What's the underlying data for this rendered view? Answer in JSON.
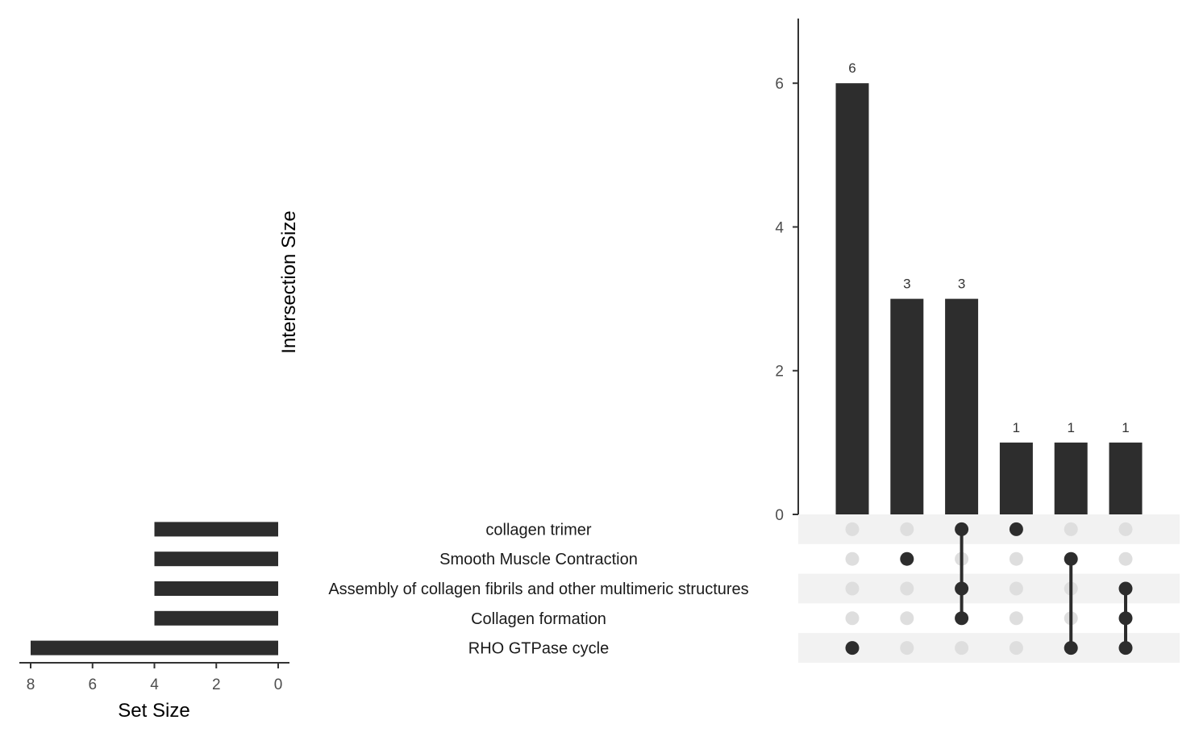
{
  "chart_data": {
    "type": "upset",
    "colors": {
      "bar": "#2d2d2d",
      "dot_active": "#2d2d2d",
      "dot_inactive": "#dedede",
      "stripe": "#f2f2f2",
      "axis": "#333333"
    },
    "sets": [
      "collagen trimer",
      "Smooth Muscle Contraction",
      "Assembly of collagen fibrils and other multimeric structures",
      "Collagen formation",
      "RHO GTPase cycle"
    ],
    "set_sizes": [
      4,
      4,
      4,
      4,
      8
    ],
    "set_size_axis": {
      "title": "Set Size",
      "ticks": [
        "8",
        "6",
        "4",
        "2",
        "0"
      ],
      "range": [
        0,
        8.4
      ],
      "reversed": true
    },
    "intersection_axis": {
      "title": "Intersection Size",
      "ticks": [
        "0",
        "2",
        "4",
        "6"
      ],
      "range": [
        0,
        6.9
      ]
    },
    "intersections": [
      {
        "members": [
          "RHO GTPase cycle"
        ],
        "size": 6,
        "label": "6"
      },
      {
        "members": [
          "Smooth Muscle Contraction"
        ],
        "size": 3,
        "label": "3"
      },
      {
        "members": [
          "collagen trimer",
          "Assembly of collagen fibrils and other multimeric structures",
          "Collagen formation"
        ],
        "size": 3,
        "label": "3"
      },
      {
        "members": [
          "collagen trimer"
        ],
        "size": 1,
        "label": "1"
      },
      {
        "members": [
          "Smooth Muscle Contraction",
          "RHO GTPase cycle"
        ],
        "size": 1,
        "label": "1"
      },
      {
        "members": [
          "Assembly of collagen fibrils and other multimeric structures",
          "Collagen formation",
          "RHO GTPase cycle"
        ],
        "size": 1,
        "label": "1"
      }
    ]
  }
}
